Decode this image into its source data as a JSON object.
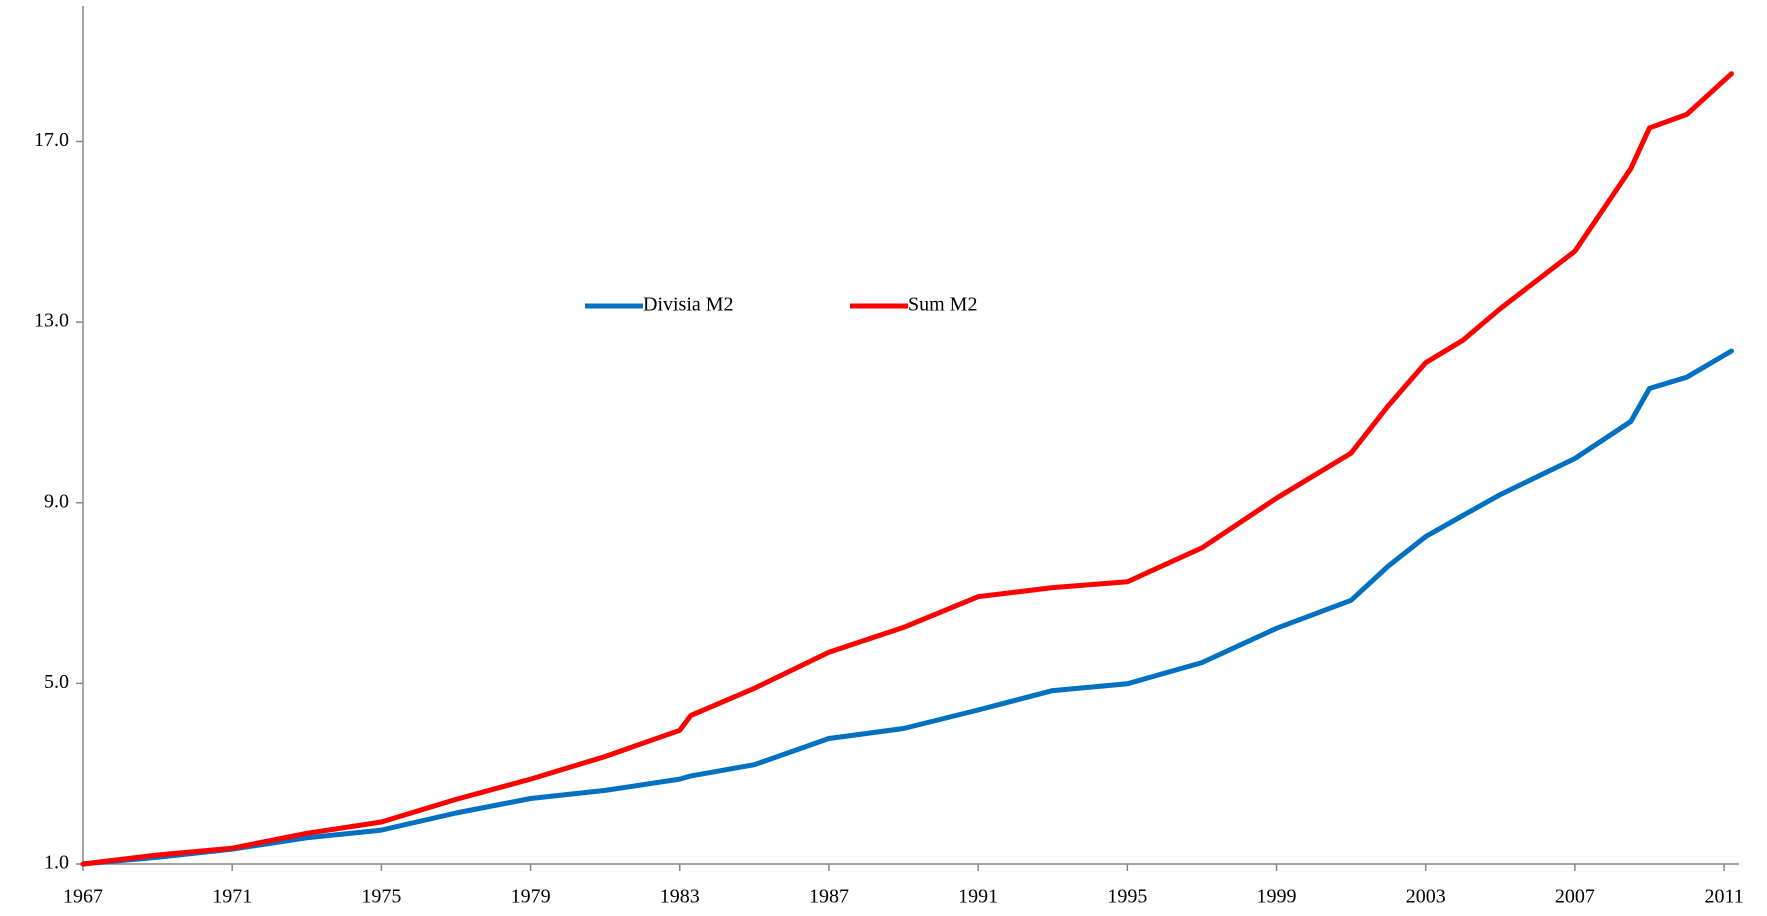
{
  "chart_data": {
    "type": "line",
    "x": [
      1967,
      1969,
      1971,
      1973,
      1975,
      1977,
      1979,
      1981,
      1983,
      1983.3,
      1985,
      1987,
      1989,
      1991,
      1993,
      1995,
      1997,
      1999,
      2001,
      2002,
      2003,
      2004,
      2005,
      2007,
      2008.5,
      2009,
      2010,
      2011.2
    ],
    "series": [
      {
        "name": "Divisia M2",
        "color": "#0070c0",
        "values": [
          1.0,
          1.15,
          1.33,
          1.58,
          1.75,
          2.13,
          2.45,
          2.63,
          2.88,
          2.95,
          3.2,
          3.78,
          4.0,
          4.41,
          4.84,
          4.99,
          5.46,
          6.22,
          6.84,
          7.6,
          8.25,
          8.72,
          9.18,
          9.98,
          10.8,
          11.53,
          11.78,
          12.36
        ]
      },
      {
        "name": "Sum M2",
        "color": "#ff0000",
        "values": [
          1.0,
          1.2,
          1.35,
          1.68,
          1.93,
          2.43,
          2.88,
          3.38,
          3.96,
          4.29,
          4.89,
          5.69,
          6.24,
          6.92,
          7.12,
          7.25,
          8.0,
          9.1,
          10.1,
          11.15,
          12.1,
          12.6,
          13.3,
          14.57,
          16.4,
          17.3,
          17.6,
          18.5
        ]
      }
    ],
    "xlim": [
      1967,
      2011.4
    ],
    "xticks": [
      1967,
      1971,
      1975,
      1979,
      1983,
      1987,
      1991,
      1995,
      1999,
      2003,
      2007,
      2011
    ],
    "ylim": [
      1,
      20
    ],
    "yticks": [
      {
        "value": 1,
        "label": "1.0"
      },
      {
        "value": 5,
        "label": "5.0"
      },
      {
        "value": 9,
        "label": "9.0"
      },
      {
        "value": 13,
        "label": "13.0"
      },
      {
        "value": 17,
        "label": "17.0"
      }
    ],
    "grid": false,
    "legend": "center"
  }
}
